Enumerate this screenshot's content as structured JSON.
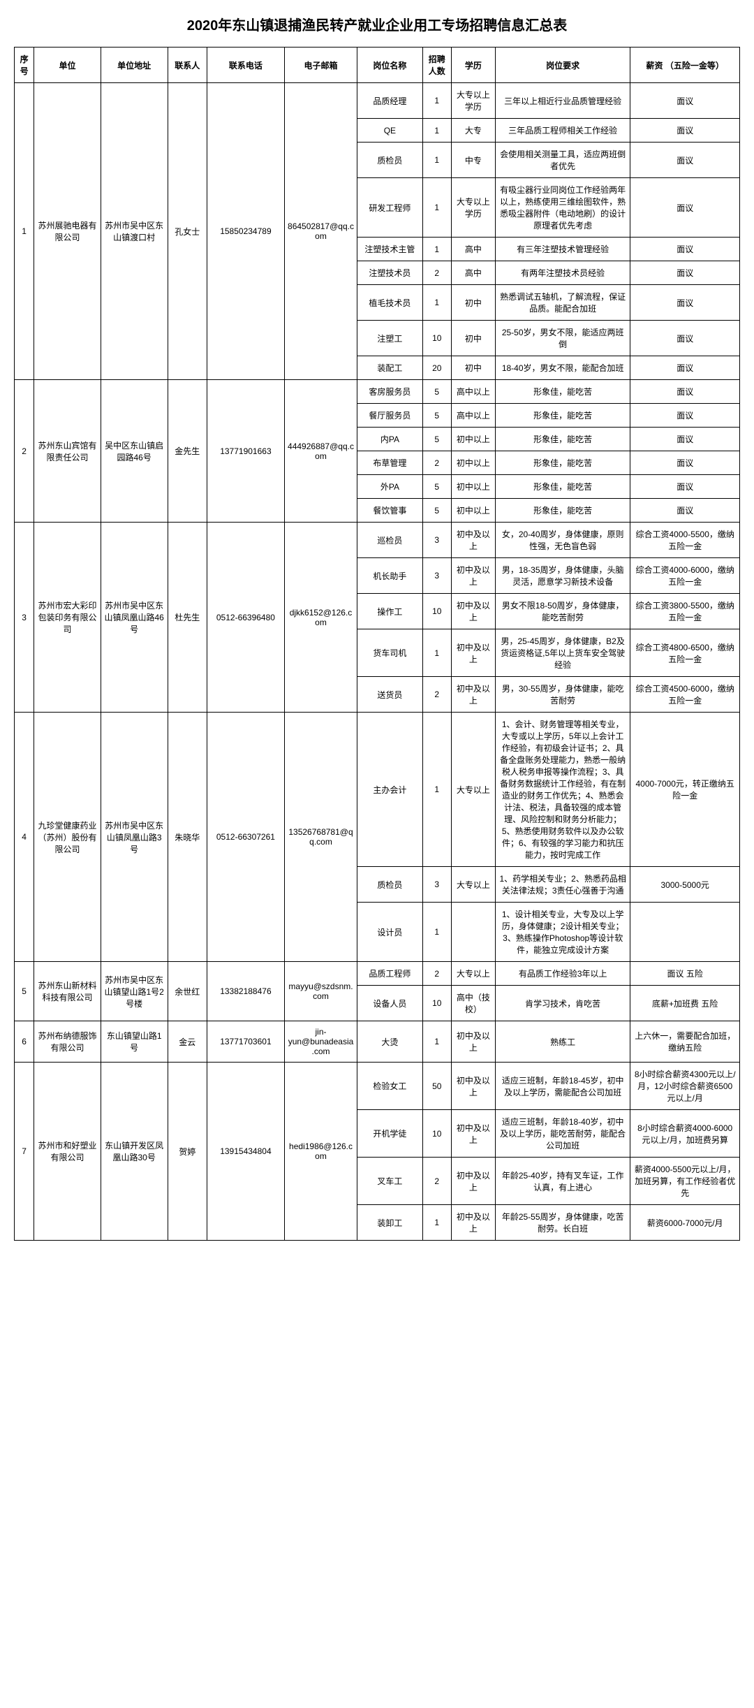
{
  "title": "2020年东山镇退捕渔民转产就业企业用工专场招聘信息汇总表",
  "columns": [
    "序号",
    "单位",
    "单位地址",
    "联系人",
    "联系电话",
    "电子邮箱",
    "岗位名称",
    "招聘人数",
    "学历",
    "岗位要求",
    "薪资\n（五险一金等）"
  ],
  "companies": [
    {
      "idx": "1",
      "name": "苏州展驰电器有限公司",
      "addr": "苏州市吴中区东山镇渡口村",
      "contact": "孔女士",
      "phone": "15850234789",
      "email": "864502817@qq.com",
      "positions": [
        {
          "title": "品质经理",
          "num": "1",
          "edu": "大专以上学历",
          "req": "三年以上相近行业品质管理经验",
          "sal": "面议"
        },
        {
          "title": "QE",
          "num": "1",
          "edu": "大专",
          "req": "三年品质工程师相关工作经验",
          "sal": "面议"
        },
        {
          "title": "质检员",
          "num": "1",
          "edu": "中专",
          "req": "会使用相关测量工具，适应两班倒者优先",
          "sal": "面议"
        },
        {
          "title": "研发工程师",
          "num": "1",
          "edu": "大专以上学历",
          "req": "有吸尘器行业同岗位工作经验两年以上，熟练使用三维绘图软件，熟悉吸尘器附件（电动地刷）的设计原理者优先考虑",
          "sal": "面议"
        },
        {
          "title": "注塑技术主管",
          "num": "1",
          "edu": "高中",
          "req": "有三年注塑技术管理经验",
          "sal": "面议"
        },
        {
          "title": "注塑技术员",
          "num": "2",
          "edu": "高中",
          "req": "有两年注塑技术员经验",
          "sal": "面议"
        },
        {
          "title": "植毛技术员",
          "num": "1",
          "edu": "初中",
          "req": "熟悉调试五轴机，了解流程，保证品质。能配合加班",
          "sal": "面议"
        },
        {
          "title": "注塑工",
          "num": "10",
          "edu": "初中",
          "req": "25-50岁，男女不限，能适应两班倒",
          "sal": "面议"
        },
        {
          "title": "装配工",
          "num": "20",
          "edu": "初中",
          "req": "18-40岁，男女不限，能配合加班",
          "sal": "面议"
        }
      ]
    },
    {
      "idx": "2",
      "name": "苏州东山宾馆有限责任公司",
      "addr": "吴中区东山镇启园路46号",
      "contact": "金先生",
      "phone": "13771901663",
      "email": "444926887@qq.com",
      "positions": [
        {
          "title": "客房服务员",
          "num": "5",
          "edu": "高中以上",
          "req": "形象佳，能吃苦",
          "sal": "面议"
        },
        {
          "title": "餐厅服务员",
          "num": "5",
          "edu": "高中以上",
          "req": "形象佳，能吃苦",
          "sal": "面议"
        },
        {
          "title": "内PA",
          "num": "5",
          "edu": "初中以上",
          "req": "形象佳，能吃苦",
          "sal": "面议"
        },
        {
          "title": "布草管理",
          "num": "2",
          "edu": "初中以上",
          "req": "形象佳，能吃苦",
          "sal": "面议"
        },
        {
          "title": "外PA",
          "num": "5",
          "edu": "初中以上",
          "req": "形象佳，能吃苦",
          "sal": "面议"
        },
        {
          "title": "餐饮管事",
          "num": "5",
          "edu": "初中以上",
          "req": "形象佳，能吃苦",
          "sal": "面议"
        }
      ]
    },
    {
      "idx": "3",
      "name": "苏州市宏大彩印包装印务有限公司",
      "addr": "苏州市吴中区东山镇凤凰山路46号",
      "contact": "杜先生",
      "phone": "0512-66396480",
      "email": "djkk6152@126.com",
      "positions": [
        {
          "title": "巡检员",
          "num": "3",
          "edu": "初中及以上",
          "req": "女，20-40周岁，身体健康，原则性强，无色盲色弱",
          "sal": "综合工资4000-5500，缴纳五险一金"
        },
        {
          "title": "机长助手",
          "num": "3",
          "edu": "初中及以上",
          "req": "男，18-35周岁，身体健康，头脑灵活，愿意学习新技术设备",
          "sal": "综合工资4000-6000，缴纳五险一金"
        },
        {
          "title": "操作工",
          "num": "10",
          "edu": "初中及以上",
          "req": "男女不限18-50周岁，身体健康，能吃苦耐劳",
          "sal": "综合工资3800-5500，缴纳五险一金"
        },
        {
          "title": "货车司机",
          "num": "1",
          "edu": "初中及以上",
          "req": "男，25-45周岁，身体健康，B2及货运资格证,5年以上货车安全驾驶经验",
          "sal": "综合工资4800-6500，缴纳五险一金"
        },
        {
          "title": "送货员",
          "num": "2",
          "edu": "初中及以上",
          "req": "男，30-55周岁，身体健康，能吃苦耐劳",
          "sal": "综合工资4500-6000，缴纳五险一金"
        }
      ]
    },
    {
      "idx": "4",
      "name": "九珍堂健康药业（苏州）股份有限公司",
      "addr": "苏州市吴中区东山镇凤凰山路3号",
      "contact": "朱晓华",
      "phone": "0512-66307261",
      "email": "13526768781@qq.com",
      "positions": [
        {
          "title": "主办会计",
          "num": "1",
          "edu": "大专以上",
          "req": "1、会计、财务管理等相关专业，大专或以上学历，5年以上会计工作经验，有初级会计证书；2、具备全盘账务处理能力，熟悉一般纳税人税务申报等操作流程；3、具备财务数据统计工作经验，有在制造业的财务工作优先；4、熟悉会计法、税法，具备较强的成本管理、风险控制和财务分析能力；5、熟悉使用财务软件以及办公软件；6、有较强的学习能力和抗压能力，按时完成工作",
          "sal": "4000-7000元，转正缴纳五险一金"
        },
        {
          "title": "质检员",
          "num": "3",
          "edu": "大专以上",
          "req": "1、药学相关专业；2、熟悉药品相关法律法规；3责任心强善于沟通",
          "sal": "3000-5000元"
        },
        {
          "title": "设计员",
          "num": "1",
          "edu": "",
          "req": "1、设计相关专业，大专及以上学历，身体健康；2设计相关专业；3、熟练操作Photoshop等设计软件，能独立完成设计方案",
          "sal": ""
        }
      ]
    },
    {
      "idx": "5",
      "name": "苏州东山新材料科技有限公司",
      "addr": "苏州市吴中区东山镇望山路1号2号楼",
      "contact": "余世红",
      "phone": "13382188476",
      "email": "mayyu@szdsnm.com",
      "positions": [
        {
          "title": "品质工程师",
          "num": "2",
          "edu": "大专以上",
          "req": "有品质工作经验3年以上",
          "sal": "面议 五险"
        },
        {
          "title": "设备人员",
          "num": "10",
          "edu": "高中（技校）",
          "req": "肯学习技术，肯吃苦",
          "sal": "底薪+加班费 五险"
        }
      ]
    },
    {
      "idx": "6",
      "name": "苏州布纳德服饰有限公司",
      "addr": "东山镇望山路1号",
      "contact": "金云",
      "phone": "13771703601",
      "email": "jin-yun@bunadeasia.com",
      "positions": [
        {
          "title": "大烫",
          "num": "1",
          "edu": "初中及以上",
          "req": "熟练工",
          "sal": "上六休一，需要配合加班，缴纳五险"
        }
      ]
    },
    {
      "idx": "7",
      "name": "苏州市和好塑业有限公司",
      "addr": "东山镇开发区凤凰山路30号",
      "contact": "贺婷",
      "phone": "13915434804",
      "email": "hedi1986@126.com",
      "positions": [
        {
          "title": "检验女工",
          "num": "50",
          "edu": "初中及以上",
          "req": "适应三班制，年龄18-45岁，初中及以上学历，需能配合公司加班",
          "sal": "8小时综合薪资4300元以上/月，12小时综合薪资6500元以上/月"
        },
        {
          "title": "开机学徒",
          "num": "10",
          "edu": "初中及以上",
          "req": "适应三班制，年龄18-40岁，初中及以上学历，能吃苦耐劳，能配合公司加班",
          "sal": "8小时综合薪资4000-6000元以上/月，加班费另算"
        },
        {
          "title": "叉车工",
          "num": "2",
          "edu": "初中及以上",
          "req": "年龄25-40岁，持有叉车证，工作认真，有上进心",
          "sal": "薪资4000-5500元以上/月，加班另算，有工作经验者优先"
        },
        {
          "title": "装卸工",
          "num": "1",
          "edu": "初中及以上",
          "req": "年龄25-55周岁，身体健康，吃苦耐劳。长白班",
          "sal": "薪资6000-7000元/月"
        }
      ]
    }
  ]
}
